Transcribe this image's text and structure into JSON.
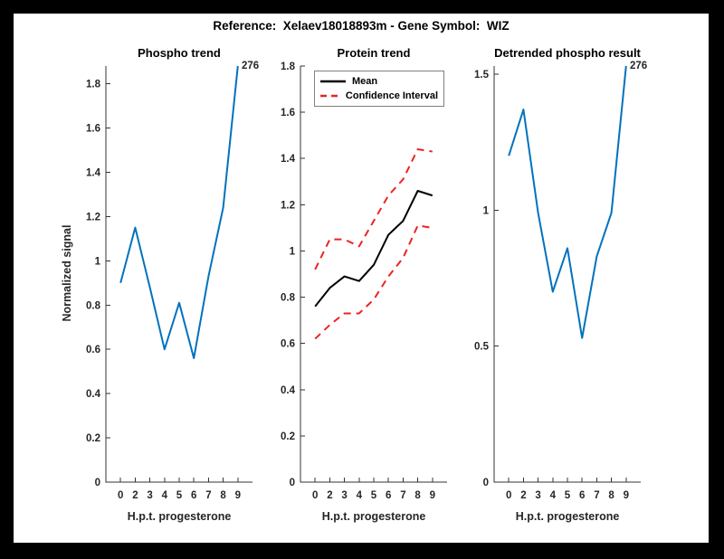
{
  "figure_title": "Reference:  Xelaev18018893m - Gene Symbol:  WIZ",
  "colors": {
    "line_blue": "#0072BD",
    "ci_red": "#EE2222",
    "mean_black": "#000000",
    "axis": "#333333",
    "tick_label": "#262626"
  },
  "chart_data": [
    {
      "type": "line",
      "title": "Phospho trend",
      "xlabel": "H.p.t. progesterone",
      "ylabel": "Normalized signal",
      "annotation_text": "276",
      "categories": [
        "0",
        "2",
        "3",
        "4",
        "5",
        "6",
        "7",
        "8",
        "9"
      ],
      "ylim": [
        0,
        1.88
      ],
      "yticks": [
        0,
        0.2,
        0.4,
        0.6,
        0.8,
        1,
        1.2,
        1.4,
        1.6,
        1.8
      ],
      "ytick_labels": [
        "0",
        "0.2",
        "0.4",
        "0.6",
        "0.8",
        "1",
        "1.2",
        "1.4",
        "1.6",
        "1.8"
      ],
      "grid": false,
      "series": [
        {
          "name": "Phospho",
          "color": "#0072BD",
          "dash": false,
          "values": [
            0.9,
            1.15,
            0.88,
            0.6,
            0.81,
            0.56,
            0.93,
            1.24,
            1.88
          ]
        }
      ]
    },
    {
      "type": "line",
      "title": "Protein trend",
      "xlabel": "H.p.t. progesterone",
      "ylabel": "",
      "legend": {
        "position": "top-left",
        "entries": [
          "Mean",
          "Confidence Interval"
        ]
      },
      "categories": [
        "0",
        "2",
        "3",
        "4",
        "5",
        "6",
        "7",
        "8",
        "9"
      ],
      "ylim": [
        0,
        1.8
      ],
      "yticks": [
        0,
        0.2,
        0.4,
        0.6,
        0.8,
        1,
        1.2,
        1.4,
        1.6,
        1.8
      ],
      "ytick_labels": [
        "0",
        "0.2",
        "0.4",
        "0.6",
        "0.8",
        "1",
        "1.2",
        "1.4",
        "1.6",
        "1.8"
      ],
      "grid": false,
      "series": [
        {
          "name": "Mean",
          "color": "#000000",
          "dash": false,
          "values": [
            0.76,
            0.84,
            0.89,
            0.87,
            0.94,
            1.07,
            1.13,
            1.26,
            1.24
          ]
        },
        {
          "name": "Confidence Interval upper",
          "color": "#EE2222",
          "dash": true,
          "values": [
            0.92,
            1.05,
            1.05,
            1.02,
            1.13,
            1.24,
            1.31,
            1.44,
            1.43
          ]
        },
        {
          "name": "Confidence Interval lower",
          "color": "#EE2222",
          "dash": true,
          "values": [
            0.62,
            0.68,
            0.73,
            0.73,
            0.79,
            0.89,
            0.97,
            1.11,
            1.1
          ]
        }
      ]
    },
    {
      "type": "line",
      "title": "Detrended phospho result",
      "xlabel": "H.p.t. progesterone",
      "ylabel": "",
      "annotation_text": "276",
      "categories": [
        "0",
        "2",
        "3",
        "4",
        "5",
        "6",
        "7",
        "8",
        "9"
      ],
      "ylim": [
        0,
        1.53
      ],
      "yticks": [
        0,
        0.5,
        1,
        1.5
      ],
      "ytick_labels": [
        "0",
        "0.5",
        "1",
        "1.5"
      ],
      "grid": false,
      "series": [
        {
          "name": "Detrended phospho",
          "color": "#0072BD",
          "dash": false,
          "values": [
            1.2,
            1.37,
            0.99,
            0.7,
            0.86,
            0.53,
            0.83,
            0.99,
            1.53
          ]
        }
      ]
    }
  ]
}
